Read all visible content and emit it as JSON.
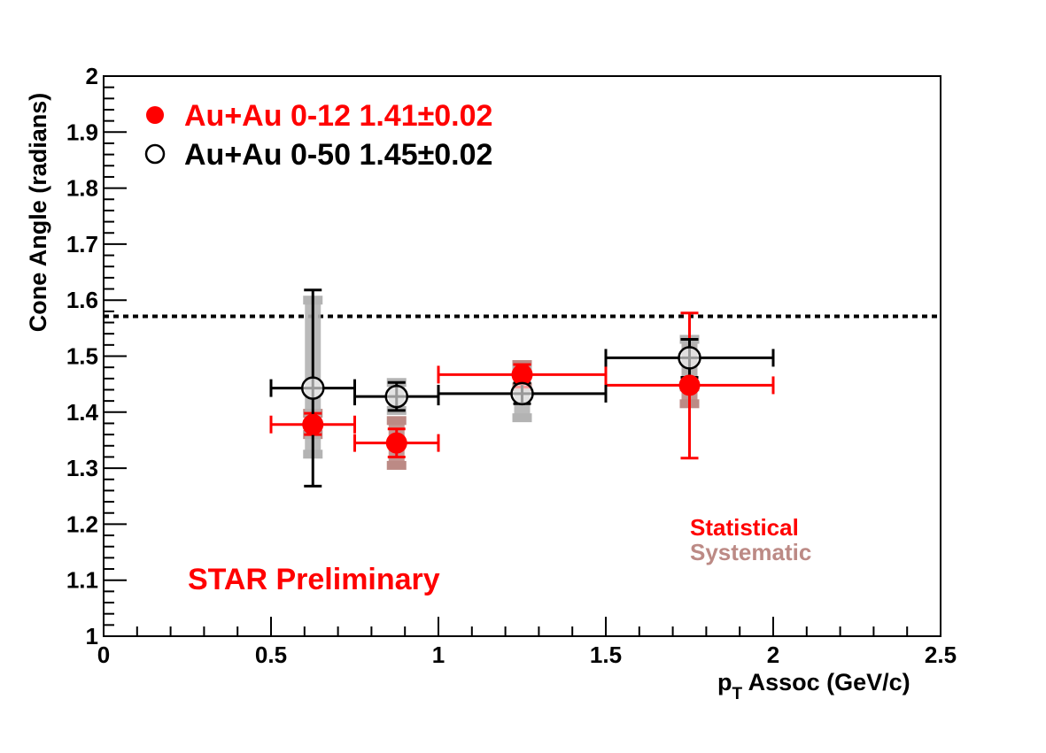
{
  "chart_data": {
    "type": "scatter",
    "title": "",
    "xlabel_main": "p",
    "xlabel_sub": "T",
    "xlabel_rest": " Assoc (GeV/c)",
    "ylabel": "Cone Angle (radians)",
    "xlim": [
      0,
      2.5
    ],
    "ylim": [
      1,
      2
    ],
    "x_ticks": [
      {
        "v": 0,
        "label": "0"
      },
      {
        "v": 0.5,
        "label": "0.5"
      },
      {
        "v": 1,
        "label": "1"
      },
      {
        "v": 1.5,
        "label": "1.5"
      },
      {
        "v": 2,
        "label": "2"
      },
      {
        "v": 2.5,
        "label": "2.5"
      }
    ],
    "y_ticks": [
      {
        "v": 1,
        "label": "1"
      },
      {
        "v": 1.1,
        "label": "1.1"
      },
      {
        "v": 1.2,
        "label": "1.2"
      },
      {
        "v": 1.3,
        "label": "1.3"
      },
      {
        "v": 1.4,
        "label": "1.4"
      },
      {
        "v": 1.5,
        "label": "1.5"
      },
      {
        "v": 1.6,
        "label": "1.6"
      },
      {
        "v": 1.7,
        "label": "1.7"
      },
      {
        "v": 1.8,
        "label": "1.8"
      },
      {
        "v": 1.9,
        "label": "1.9"
      },
      {
        "v": 2,
        "label": "2"
      }
    ],
    "reference_line": {
      "y": 1.571,
      "style": "dotted",
      "color": "#000000"
    },
    "series": [
      {
        "name": "Au+Au 0-12 1.41±0.02",
        "marker": "filled-circle",
        "color": "#ff0000",
        "syst_color": "#bc8a85",
        "points": [
          {
            "x": 0.625,
            "y": 1.378,
            "xlo": 0.5,
            "xhi": 0.75,
            "stat_lo": 1.36,
            "stat_hi": 1.398,
            "syst_lo": 1.36,
            "syst_hi": 1.398
          },
          {
            "x": 0.875,
            "y": 1.345,
            "xlo": 0.75,
            "xhi": 1.0,
            "stat_lo": 1.32,
            "stat_hi": 1.37,
            "syst_lo": 1.305,
            "syst_hi": 1.385
          },
          {
            "x": 1.25,
            "y": 1.467,
            "xlo": 1.0,
            "xhi": 1.5,
            "stat_lo": 1.445,
            "stat_hi": 1.485,
            "syst_lo": 1.445,
            "syst_hi": 1.485
          },
          {
            "x": 1.75,
            "y": 1.448,
            "xlo": 1.5,
            "xhi": 2.0,
            "stat_lo": 1.318,
            "stat_hi": 1.577,
            "syst_lo": 1.415,
            "syst_hi": 1.53
          }
        ]
      },
      {
        "name": "Au+Au 0-50 1.45±0.02",
        "marker": "open-circle",
        "color": "#000000",
        "syst_color": "#b3b3b3",
        "points": [
          {
            "x": 0.625,
            "y": 1.443,
            "xlo": 0.5,
            "xhi": 0.75,
            "stat_lo": 1.268,
            "stat_hi": 1.618,
            "syst_lo": 1.325,
            "syst_hi": 1.6
          },
          {
            "x": 0.875,
            "y": 1.428,
            "xlo": 0.75,
            "xhi": 1.0,
            "stat_lo": 1.403,
            "stat_hi": 1.453,
            "syst_lo": 1.403,
            "syst_hi": 1.453
          },
          {
            "x": 1.25,
            "y": 1.433,
            "xlo": 1.0,
            "xhi": 1.5,
            "stat_lo": 1.415,
            "stat_hi": 1.452,
            "syst_lo": 1.39,
            "syst_hi": 1.475
          },
          {
            "x": 1.75,
            "y": 1.497,
            "xlo": 1.5,
            "xhi": 2.0,
            "stat_lo": 1.462,
            "stat_hi": 1.53,
            "syst_lo": 1.445,
            "syst_hi": 1.53
          }
        ]
      }
    ],
    "legend_placement": "top-left",
    "annotations": {
      "preliminary": {
        "text": "STAR Preliminary",
        "color": "#ff0000"
      },
      "statistical": {
        "text": "Statistical",
        "color": "#ff0000"
      },
      "systematic": {
        "text": "Systematic",
        "color": "#bc8a85"
      }
    }
  }
}
